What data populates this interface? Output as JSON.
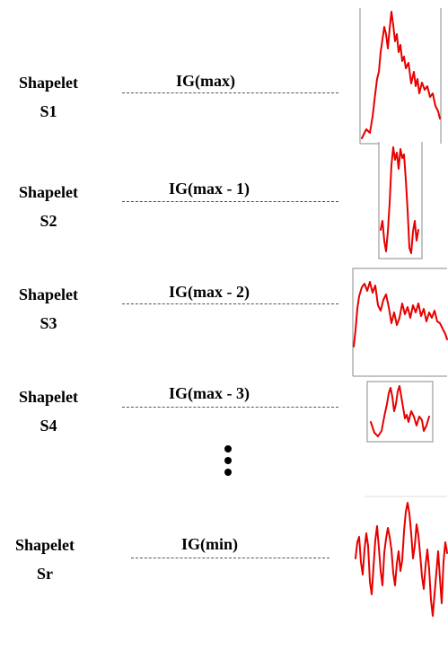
{
  "rows": [
    {
      "label_line1": "Shapelet",
      "label_line2": "S1",
      "ig": "IG(max)"
    },
    {
      "label_line1": "Shapelet",
      "label_line2": "S2",
      "ig": "IG(max - 1)"
    },
    {
      "label_line1": "Shapelet",
      "label_line2": "S3",
      "ig": "IG(max - 2)"
    },
    {
      "label_line1": "Shapelet",
      "label_line2": "S4",
      "ig": "IG(max - 3)"
    },
    {
      "label_line1": "Shapelet",
      "label_line2": "Sr",
      "ig": "IG(min)"
    }
  ],
  "colors": {
    "curve": "#e60000",
    "frame": "#8a8a8a",
    "dashed_line": "#555555"
  },
  "ellipsis_icon": "vertical-ellipsis-icon"
}
